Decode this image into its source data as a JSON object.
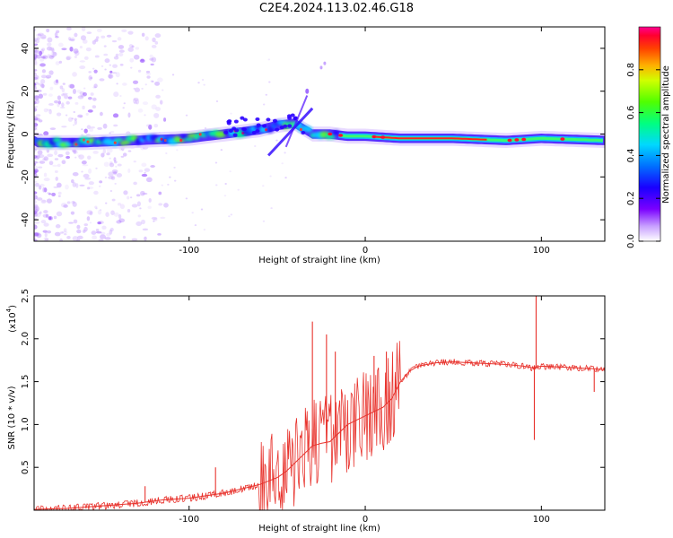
{
  "title": "C2E4.2024.113.02.46.G18",
  "chart_data": [
    {
      "type": "heatmap",
      "xlabel": "Height of straight line (km)",
      "ylabel": "Frequency (Hz)",
      "xlim": [
        -188,
        136
      ],
      "ylim": [
        -50,
        50
      ],
      "xticks": [
        -100,
        0,
        100
      ],
      "yticks": [
        -40,
        -20,
        0,
        20,
        40
      ],
      "grid": false,
      "colorbar": {
        "label": "Normalized spectral amplitude",
        "range": [
          0,
          1
        ],
        "ticks": [
          0.0,
          0.2,
          0.4,
          0.6,
          0.8
        ],
        "colormap": [
          "#ffffff",
          "#c8a0ff",
          "#7a00ff",
          "#1a00ff",
          "#0060ff",
          "#00d0ff",
          "#00ff80",
          "#40ff00",
          "#c0ff00",
          "#ffd000",
          "#ff6000",
          "#ff0020",
          "#ff0080"
        ]
      },
      "ridge_x": [
        -186,
        -160,
        -130,
        -100,
        -80,
        -60,
        -50,
        -40,
        -30,
        -20,
        -10,
        0,
        20,
        50,
        80,
        100,
        136
      ],
      "ridge_y": [
        -4,
        -4,
        -3,
        -2,
        0,
        2,
        4,
        5,
        0,
        0,
        -1,
        -1,
        -2,
        -2,
        -3,
        -2,
        -3
      ]
    },
    {
      "type": "line",
      "xlabel": "Height of straight line (km)",
      "ylabel": "SNR (10 * v/v)",
      "yscale_label": "(x10",
      "yscale_exp": "4",
      "ylabel_suffix": ")",
      "xlim": [
        -188,
        136
      ],
      "ylim": [
        0,
        2.5
      ],
      "xticks": [
        -100,
        0,
        100
      ],
      "yticks": [
        0.5,
        1.0,
        1.5,
        2.0,
        2.5
      ],
      "grid": false,
      "color": "#e8332d",
      "x": [
        -188,
        -170,
        -150,
        -130,
        -115,
        -100,
        -90,
        -80,
        -70,
        -60,
        -50,
        -45,
        -40,
        -35,
        -30,
        -25,
        -20,
        -15,
        -10,
        -5,
        0,
        5,
        10,
        15,
        20,
        25,
        30,
        40,
        50,
        60,
        70,
        80,
        90,
        95,
        100,
        110,
        120,
        130,
        136
      ],
      "y": [
        0.01,
        0.02,
        0.05,
        0.08,
        0.12,
        0.14,
        0.17,
        0.2,
        0.25,
        0.3,
        0.38,
        0.45,
        0.55,
        0.65,
        0.75,
        0.78,
        0.8,
        0.9,
        1.0,
        1.05,
        1.1,
        1.15,
        1.2,
        1.3,
        1.5,
        1.62,
        1.68,
        1.72,
        1.73,
        1.72,
        1.71,
        1.7,
        1.68,
        1.66,
        1.68,
        1.67,
        1.66,
        1.65,
        1.64
      ],
      "peaks": [
        {
          "x": -30,
          "y": 2.2
        },
        {
          "x": -22,
          "y": 2.05
        },
        {
          "x": -17,
          "y": 1.85
        },
        {
          "x": 5,
          "y": 1.8
        },
        {
          "x": 12,
          "y": 1.85
        },
        {
          "x": -85,
          "y": 0.5
        },
        {
          "x": -125,
          "y": 0.28
        },
        {
          "x": 97,
          "y": 2.5
        },
        {
          "x": 96,
          "y": 0.82
        },
        {
          "x": 130,
          "y": 1.38
        }
      ]
    }
  ]
}
